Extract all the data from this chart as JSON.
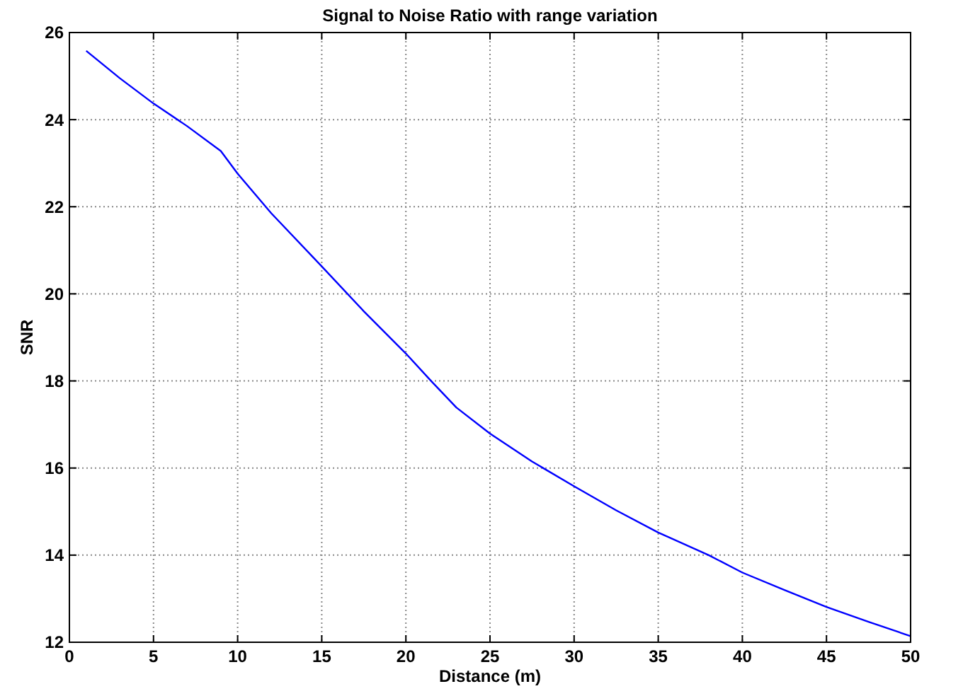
{
  "chart_data": {
    "type": "line",
    "title": "Signal to Noise Ratio with range variation",
    "xlabel": "Distance (m)",
    "ylabel": "SNR",
    "x": [
      1,
      3,
      5,
      7,
      9,
      10,
      12,
      15,
      17.5,
      20,
      21.5,
      23,
      25,
      27.5,
      30,
      32.5,
      35,
      38,
      40,
      42.5,
      45,
      47.5,
      50
    ],
    "series": [
      {
        "color": "#0000ff",
        "values": [
          25.58,
          24.95,
          24.37,
          23.85,
          23.28,
          22.76,
          21.85,
          20.63,
          19.6,
          18.63,
          18.0,
          17.39,
          16.79,
          16.15,
          15.58,
          15.03,
          14.52,
          14.0,
          13.6,
          13.2,
          12.81,
          12.47,
          12.14
        ]
      }
    ],
    "xlim": [
      0,
      50
    ],
    "xticks": [
      0,
      5,
      10,
      15,
      20,
      25,
      30,
      35,
      40,
      45,
      50
    ],
    "ylim": [
      12,
      26
    ],
    "yticks": [
      12,
      14,
      16,
      18,
      20,
      22,
      24,
      26
    ],
    "grid": true,
    "line_style": "solid",
    "marker": "none"
  }
}
